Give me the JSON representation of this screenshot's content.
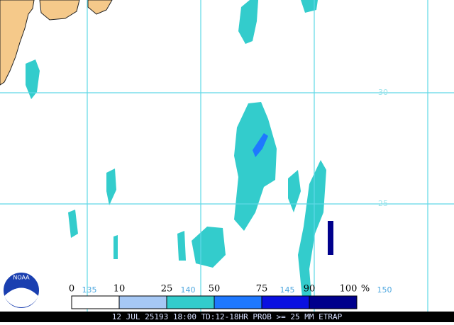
{
  "map": {
    "lat_labels": [
      "30",
      "25"
    ],
    "lon_labels": [
      "135",
      "140",
      "145",
      "150"
    ],
    "logo": "NOAA"
  },
  "legend": {
    "labels": [
      "0",
      "10",
      "25",
      "50",
      "75",
      "90",
      "100"
    ],
    "unit": "%",
    "colors": [
      "#ffffff",
      "#a6c8f5",
      "#33cccc",
      "#1e78ff",
      "#0a10e0",
      "#00008c"
    ]
  },
  "footer": {
    "text": "12 JUL 25193 18:00 TD:12-18HR PROB >= 25 MM ETRAP"
  }
}
